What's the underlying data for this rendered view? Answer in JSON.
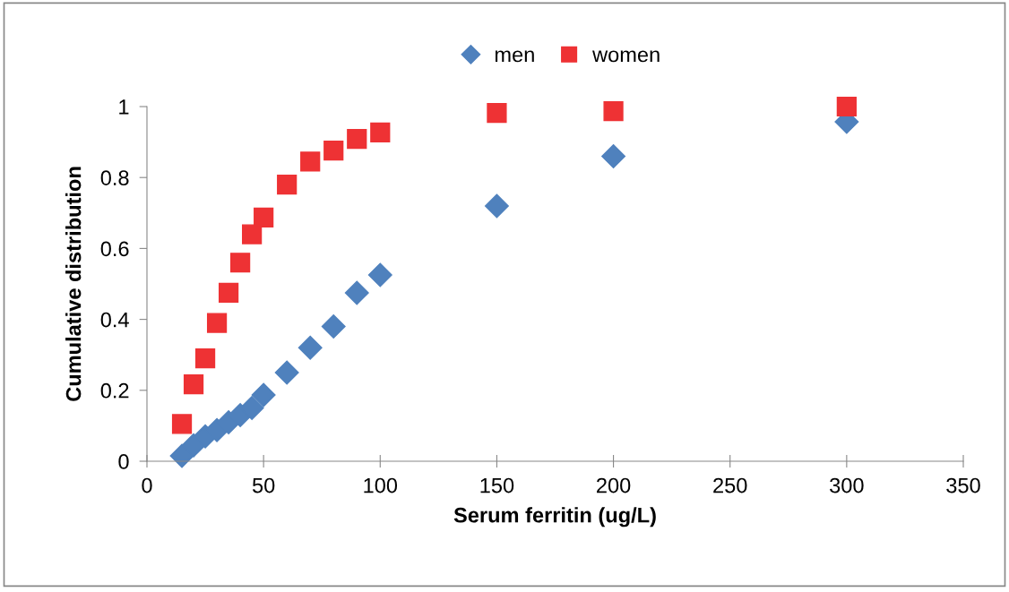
{
  "chart_data": {
    "type": "scatter",
    "xlabel": "Serum ferritin (ug/L)",
    "ylabel": "Cumulative distribution",
    "xlim": [
      0,
      350
    ],
    "xticks": [
      0,
      50,
      100,
      150,
      200,
      250,
      300,
      350
    ],
    "ylim": [
      0,
      1
    ],
    "yticks": [
      0,
      0.2,
      0.4,
      0.6,
      0.8,
      1
    ],
    "grid": false,
    "legend": "top",
    "series": [
      {
        "name": "men",
        "color": "#4f81bd",
        "marker": "diamond",
        "x": [
          15,
          20,
          25,
          30,
          35,
          40,
          45,
          50,
          60,
          70,
          80,
          90,
          100,
          150,
          200,
          300
        ],
        "values": [
          0.015,
          0.045,
          0.07,
          0.088,
          0.11,
          0.13,
          0.15,
          0.187,
          0.25,
          0.32,
          0.38,
          0.475,
          0.525,
          0.72,
          0.86,
          0.957
        ]
      },
      {
        "name": "women",
        "color": "#ee3234",
        "marker": "square",
        "x": [
          15,
          20,
          25,
          30,
          35,
          40,
          45,
          50,
          60,
          70,
          80,
          90,
          100,
          150,
          200,
          300
        ],
        "values": [
          0.105,
          0.217,
          0.29,
          0.39,
          0.475,
          0.56,
          0.64,
          0.687,
          0.78,
          0.845,
          0.876,
          0.909,
          0.927,
          0.982,
          0.987,
          1.0
        ]
      }
    ]
  }
}
